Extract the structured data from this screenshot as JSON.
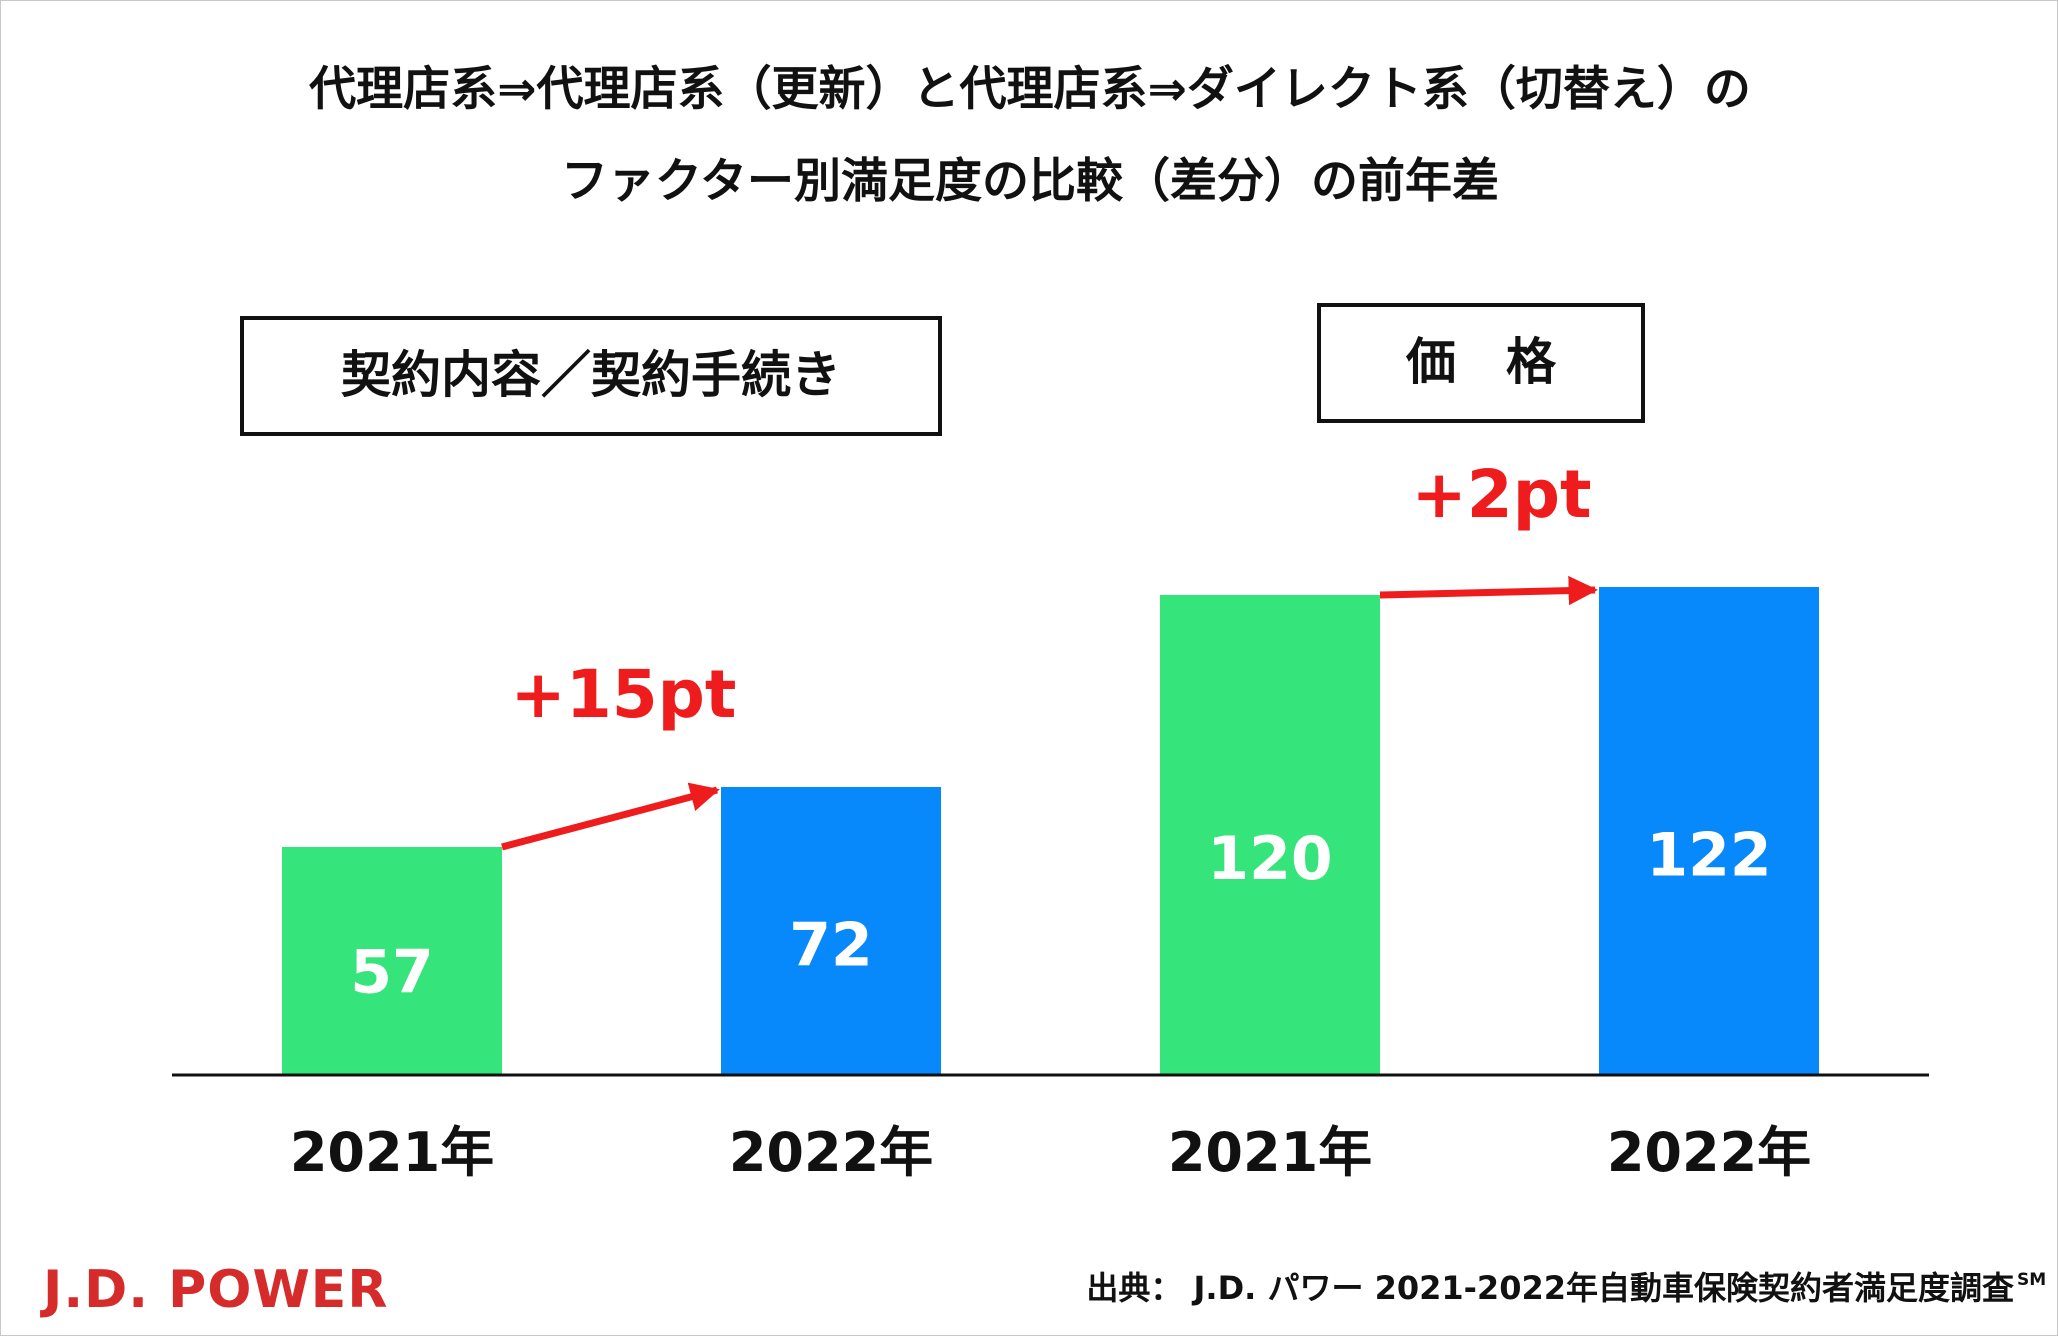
{
  "colors": {
    "green": "#35e47a",
    "blue": "#0788fb",
    "red": "#ee1c1c",
    "logo_red": "#d62b2b",
    "text": "#111111"
  },
  "chart_data": {
    "type": "bar",
    "title": "代理店系⇒代理店系（更新）と代理店系⇒ダイレクト系（切替え）のファクター別満足度の比較（差分）の前年差",
    "title_lines": [
      "代理店系⇒代理店系（更新）と代理店系⇒ダイレクト系（切替え）の",
      "ファクター別満足度の比較（差分）の前年差"
    ],
    "ylim": [
      0,
      130
    ],
    "groups": [
      {
        "label": "契約内容／契約手続き",
        "categories": [
          "2021年",
          "2022年"
        ],
        "values": [
          57,
          72
        ],
        "value_labels": [
          "57",
          "72"
        ],
        "delta_label": "+15pt"
      },
      {
        "label": "価　格",
        "categories": [
          "2021年",
          "2022年"
        ],
        "values": [
          120,
          122
        ],
        "value_labels": [
          "120",
          "122"
        ],
        "delta_label": "+2pt"
      }
    ]
  },
  "footer": {
    "logo": "J.D. POWER",
    "source": "出典： J.D. パワー 2021-2022年自動車保険契約者満足度調査",
    "source_mark": "SM"
  }
}
